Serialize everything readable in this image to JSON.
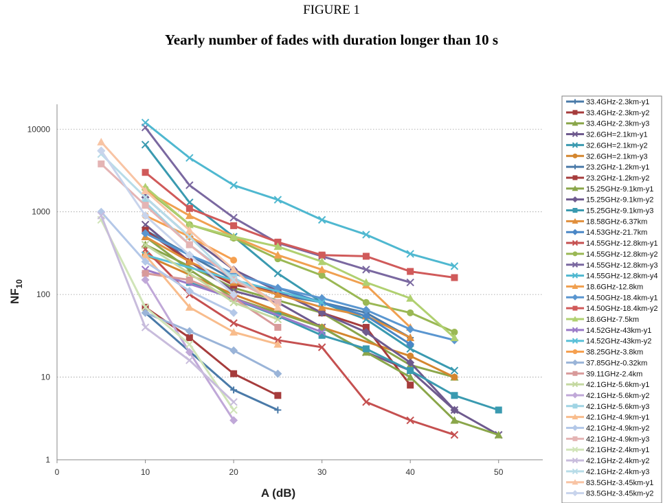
{
  "header": {
    "figure_label": "FIGURE 1",
    "title": "Yearly number of fades with duration longer than 10 s"
  },
  "chart_data": {
    "type": "line",
    "title": "Yearly number of fades with duration longer than 10 s",
    "xlabel": "A (dB)",
    "ylabel": "NF10",
    "xlim": [
      0,
      55
    ],
    "ylim": [
      1,
      20000
    ],
    "y_scale": "log",
    "x_ticks": [
      "0",
      "10",
      "20",
      "30",
      "40",
      "50"
    ],
    "y_ticks": [
      "1",
      "10",
      "100",
      "1000",
      "10000"
    ],
    "grid": "horizontal dotted",
    "legend": "right",
    "series": [
      {
        "name": "33.4GHz-2.3km-y1",
        "color": "#4a7aa8",
        "marker": "plus",
        "x": [
          10,
          20,
          25
        ],
        "y": [
          60,
          7,
          4
        ]
      },
      {
        "name": "33.4GHz-2.3km-y2",
        "color": "#a63c3c",
        "marker": "square",
        "x": [
          10,
          15,
          20,
          25
        ],
        "y": [
          70,
          30,
          11,
          6
        ]
      },
      {
        "name": "33.4GHz-2.3km-y3",
        "color": "#8aa64a",
        "marker": "triangle",
        "x": [
          10,
          20,
          30,
          40,
          45
        ],
        "y": [
          400,
          120,
          60,
          14,
          10
        ]
      },
      {
        "name": "32.6GH=2.1km-y1",
        "color": "#6e5a8e",
        "marker": "x",
        "x": [
          10,
          15,
          20,
          25,
          30,
          35,
          40,
          45,
          50
        ],
        "y": [
          700,
          250,
          110,
          80,
          40,
          20,
          12,
          4,
          2
        ]
      },
      {
        "name": "32.6GH=2.1km-y2",
        "color": "#3a9ab0",
        "marker": "x",
        "x": [
          10,
          15,
          20,
          25,
          30,
          35,
          40,
          45
        ],
        "y": [
          6500,
          1300,
          500,
          180,
          80,
          50,
          22,
          12
        ]
      },
      {
        "name": "32.6GH=2.1km-y3",
        "color": "#d4862e",
        "marker": "circle",
        "x": [
          10,
          20,
          30,
          40,
          45
        ],
        "y": [
          300,
          100,
          40,
          18,
          10
        ]
      },
      {
        "name": "23.2GHz-1.2km-y1",
        "color": "#4a7aa8",
        "marker": "plus",
        "x": [
          10,
          15,
          20,
          25,
          30,
          35,
          40
        ],
        "y": [
          600,
          300,
          150,
          100,
          80,
          60,
          30
        ]
      },
      {
        "name": "23.2GHz-1.2km-y2",
        "color": "#a63c3c",
        "marker": "square",
        "x": [
          10,
          15,
          20,
          25,
          30,
          35,
          40
        ],
        "y": [
          600,
          250,
          130,
          110,
          60,
          40,
          8
        ]
      },
      {
        "name": "15.25GHz-9.1km-y1",
        "color": "#8aa64a",
        "marker": "triangle",
        "x": [
          10,
          15,
          20,
          25,
          30,
          35,
          40,
          45,
          50
        ],
        "y": [
          500,
          200,
          90,
          60,
          40,
          20,
          10,
          3,
          2
        ]
      },
      {
        "name": "15.25GHz-9.1km-y2",
        "color": "#6e5a8e",
        "marker": "diamond",
        "x": [
          10,
          15,
          20,
          25,
          30,
          35,
          40,
          45
        ],
        "y": [
          1500,
          500,
          200,
          110,
          60,
          35,
          15,
          4
        ]
      },
      {
        "name": "15.25GHz-9.1km-y3",
        "color": "#3a9ab0",
        "marker": "square",
        "x": [
          15,
          25,
          30,
          35,
          40,
          45,
          50
        ],
        "y": [
          140,
          55,
          32,
          22,
          12,
          6,
          4
        ]
      },
      {
        "name": "18.58GHz-6.37km",
        "color": "#e08e3c",
        "marker": "triangle",
        "x": [
          10,
          15,
          20,
          25,
          30,
          35,
          40
        ],
        "y": [
          500,
          250,
          140,
          100,
          70,
          55,
          30
        ]
      },
      {
        "name": "14.53GHz-21.7km",
        "color": "#4a87c6",
        "marker": "diamond",
        "x": [
          15,
          20,
          25,
          30,
          35,
          40
        ],
        "y": [
          300,
          180,
          120,
          80,
          55,
          25
        ]
      },
      {
        "name": "14.55GHz-12.8km-y1",
        "color": "#c55050",
        "marker": "x",
        "x": [
          10,
          15,
          20,
          25,
          30,
          35,
          40,
          45
        ],
        "y": [
          350,
          100,
          45,
          28,
          23,
          5,
          3,
          2
        ]
      },
      {
        "name": "14.55GHz-12.8km-y2",
        "color": "#9ab854",
        "marker": "circle",
        "x": [
          10,
          15,
          20,
          25,
          30,
          35,
          40,
          45
        ],
        "y": [
          1900,
          700,
          480,
          270,
          170,
          80,
          60,
          35
        ]
      },
      {
        "name": "14.55GHz-12.8km-y3",
        "color": "#7a68a0",
        "marker": "x",
        "x": [
          10,
          15,
          20,
          25,
          30,
          35,
          40
        ],
        "y": [
          10500,
          2100,
          850,
          420,
          290,
          200,
          140
        ]
      },
      {
        "name": "14.55GHz-12.8km-y4",
        "color": "#4fb8d0",
        "marker": "x",
        "x": [
          10,
          15,
          20,
          25,
          30,
          35,
          40,
          45
        ],
        "y": [
          12000,
          4500,
          2100,
          1400,
          800,
          530,
          310,
          220
        ]
      },
      {
        "name": "18.6GHz-12.8km",
        "color": "#f0a050",
        "marker": "triangle",
        "x": [
          10,
          15,
          20,
          25,
          30,
          35,
          40
        ],
        "y": [
          1800,
          900,
          500,
          300,
          200,
          130,
          40
        ]
      },
      {
        "name": "14.50GHz-18.4km-y1",
        "color": "#5a96d0",
        "marker": "diamond",
        "x": [
          10,
          15,
          20,
          25,
          30,
          35,
          40,
          45
        ],
        "y": [
          550,
          300,
          180,
          120,
          90,
          65,
          38,
          28
        ]
      },
      {
        "name": "14.50GHz-18.4km-y2",
        "color": "#d05a5a",
        "marker": "square",
        "x": [
          10,
          15,
          20,
          25,
          30,
          35,
          40,
          45
        ],
        "y": [
          3000,
          1100,
          680,
          430,
          300,
          290,
          190,
          160
        ]
      },
      {
        "name": "18.6GHz-7.5km",
        "color": "#b0d070",
        "marker": "triangle",
        "x": [
          10,
          15,
          20,
          25,
          30,
          35,
          40,
          45
        ],
        "y": [
          2000,
          700,
          500,
          380,
          250,
          140,
          90,
          30
        ]
      },
      {
        "name": "14.52GHz-43km-y1",
        "color": "#9a7ac8",
        "marker": "x",
        "x": [
          10,
          20,
          30
        ],
        "y": [
          200,
          90,
          35
        ]
      },
      {
        "name": "14.52GHz-43km-y2",
        "color": "#5ac0d8",
        "marker": "x",
        "x": [
          10,
          20,
          30
        ],
        "y": [
          300,
          150,
          80
        ]
      },
      {
        "name": "38.25GHz-3.8km",
        "color": "#f5a050",
        "marker": "circle",
        "x": [
          10,
          15,
          20
        ],
        "y": [
          900,
          500,
          260
        ]
      },
      {
        "name": "37.85GHz-0.32km",
        "color": "#9ab4d8",
        "marker": "diamond",
        "x": [
          10,
          15,
          20,
          25
        ],
        "y": [
          60,
          36,
          21,
          11
        ]
      },
      {
        "name": "39.11GHz-2.4km",
        "color": "#d89a9a",
        "marker": "square",
        "x": [
          10,
          15,
          20,
          25
        ],
        "y": [
          180,
          150,
          90,
          40
        ]
      },
      {
        "name": "42.1GHz-5.6km-y1",
        "color": "#c4d8a0",
        "marker": "x",
        "x": [
          10,
          15,
          20,
          25
        ],
        "y": [
          400,
          180,
          80,
          50
        ]
      },
      {
        "name": "42.1GHz-5.6km-y2",
        "color": "#c0a8d8",
        "marker": "diamond",
        "x": [
          10,
          15,
          20
        ],
        "y": [
          150,
          20,
          3
        ]
      },
      {
        "name": "42.1GHz-5.6km-y3",
        "color": "#a0d4e4",
        "marker": "square",
        "x": [
          10,
          15,
          20,
          25
        ],
        "y": [
          1300,
          400,
          160,
          80
        ]
      },
      {
        "name": "42.1GHz-4.9km-y1",
        "color": "#f8bc8c",
        "marker": "triangle",
        "x": [
          10,
          15,
          20,
          25
        ],
        "y": [
          300,
          70,
          35,
          25
        ]
      },
      {
        "name": "42.1GHz-4.9km-y2",
        "color": "#b4c8e8",
        "marker": "diamond",
        "x": [
          5,
          10,
          15,
          20
        ],
        "y": [
          1000,
          250,
          110,
          60
        ]
      },
      {
        "name": "42.1GHz-4.9km-y3",
        "color": "#e4b4b4",
        "marker": "square",
        "x": [
          5,
          10,
          15,
          20,
          25
        ],
        "y": [
          3800,
          1200,
          400,
          150,
          80
        ]
      },
      {
        "name": "42.1GHz-2.4km-y1",
        "color": "#d0e4b8",
        "marker": "x",
        "x": [
          5,
          10,
          15,
          20
        ],
        "y": [
          800,
          70,
          25,
          4
        ]
      },
      {
        "name": "42.1GHz-2.4km-y2",
        "color": "#c8bcdc",
        "marker": "x",
        "x": [
          5,
          10,
          15,
          20
        ],
        "y": [
          900,
          40,
          16,
          5
        ]
      },
      {
        "name": "42.1GHz-2.4km-y3",
        "color": "#b8dce8",
        "marker": "x",
        "x": [
          5,
          10,
          15,
          20
        ],
        "y": [
          5000,
          1500,
          500,
          150
        ]
      },
      {
        "name": "83.5GHz-3.45km-y1",
        "color": "#f8c4a4",
        "marker": "triangle",
        "x": [
          5,
          10,
          15,
          20,
          25
        ],
        "y": [
          7000,
          1800,
          600,
          200,
          70
        ]
      },
      {
        "name": "83.5GHz-3.45km-y2",
        "color": "#c8d4ec",
        "marker": "diamond",
        "x": [
          5,
          10,
          15,
          20
        ],
        "y": [
          5500,
          900,
          300,
          100
        ]
      }
    ]
  }
}
